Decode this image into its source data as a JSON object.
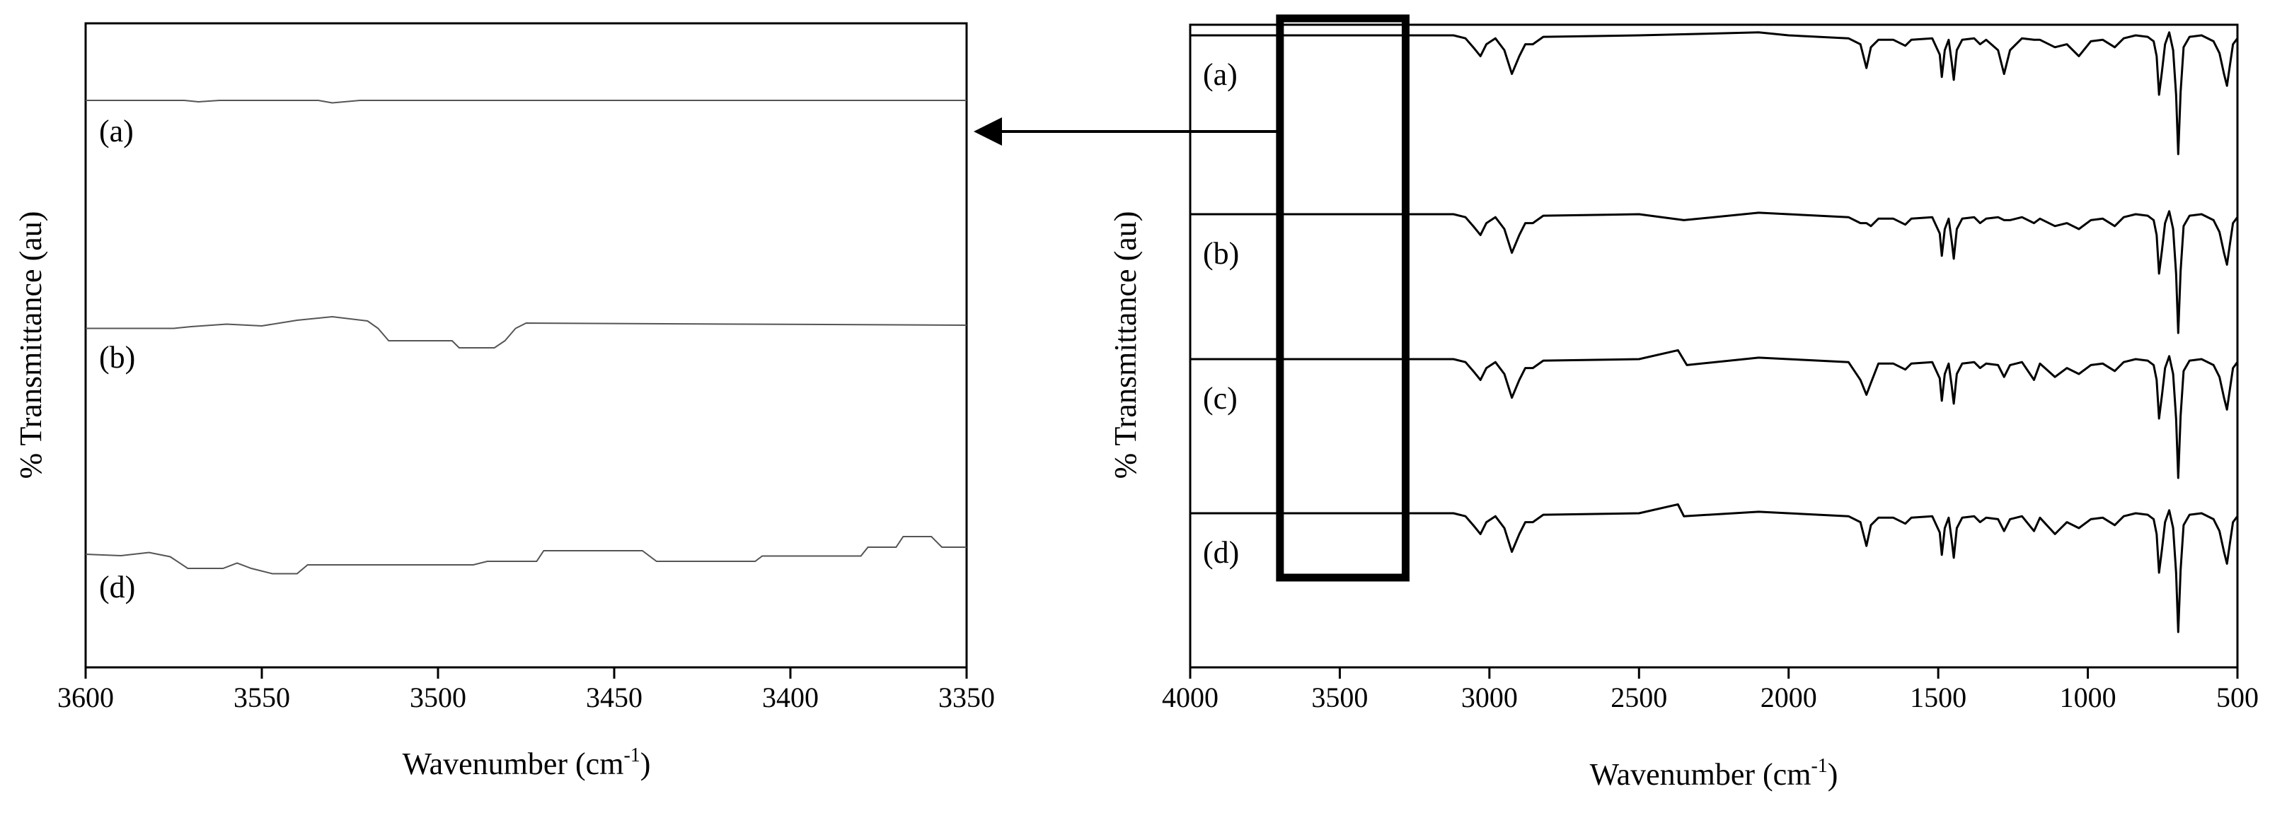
{
  "chart_data": [
    {
      "type": "line",
      "title": "",
      "xlabel": "Wavenumber (cm",
      "xlabel_sup": "-1",
      "xlabel_close": ")",
      "ylabel": "% Transmittance (au)",
      "xlim": [
        3600,
        3350
      ],
      "x_reversed": true,
      "x_ticks": [
        3600,
        3550,
        3500,
        3450,
        3400,
        3350
      ],
      "y_ticks": false,
      "grid": false,
      "legend": "none",
      "series_color": "#555555",
      "series": [
        {
          "name": "(a)",
          "points": [
            [
              3600,
              0
            ],
            [
              3572,
              0
            ],
            [
              3568,
              0.4
            ],
            [
              3562,
              0
            ],
            [
              3534,
              0
            ],
            [
              3530,
              0.7
            ],
            [
              3522,
              0
            ],
            [
              3350,
              0
            ]
          ]
        },
        {
          "name": "(b)",
          "points": [
            [
              3600,
              0.5
            ],
            [
              3575,
              0.5
            ],
            [
              3570,
              0
            ],
            [
              3560,
              -0.7
            ],
            [
              3550,
              -0.2
            ],
            [
              3540,
              -1.8
            ],
            [
              3530,
              -2.8
            ],
            [
              3520,
              -1.6
            ],
            [
              3517,
              0.5
            ],
            [
              3514,
              4
            ],
            [
              3496,
              4
            ],
            [
              3494,
              6
            ],
            [
              3484,
              6
            ],
            [
              3481,
              4
            ],
            [
              3478,
              0.5
            ],
            [
              3475,
              -1
            ],
            [
              3350,
              -0.4
            ]
          ]
        },
        {
          "name": "(d)",
          "points": [
            [
              3600,
              0
            ],
            [
              3590,
              0.4
            ],
            [
              3582,
              -0.5
            ],
            [
              3576,
              0.7
            ],
            [
              3571,
              4
            ],
            [
              3561,
              4
            ],
            [
              3557,
              2.5
            ],
            [
              3553,
              4
            ],
            [
              3547,
              5.5
            ],
            [
              3540,
              5.5
            ],
            [
              3537,
              3
            ],
            [
              3490,
              3
            ],
            [
              3486,
              2
            ],
            [
              3472,
              2
            ],
            [
              3470,
              -1
            ],
            [
              3442,
              -1
            ],
            [
              3438,
              2
            ],
            [
              3410,
              2
            ],
            [
              3408,
              0.5
            ],
            [
              3380,
              0.5
            ],
            [
              3378,
              -2
            ],
            [
              3370,
              -2
            ],
            [
              3368,
              -5
            ],
            [
              3360,
              -5
            ],
            [
              3357,
              -2
            ],
            [
              3350,
              -2
            ]
          ]
        }
      ],
      "labels": [
        "(a)",
        "(b)",
        "(d)"
      ]
    },
    {
      "type": "line",
      "title": "",
      "xlabel": "Wavenumber (cm",
      "xlabel_sup": "-1",
      "xlabel_close": ")",
      "ylabel": "% Transmittance (au)",
      "xlim": [
        4000,
        500
      ],
      "x_reversed": true,
      "x_ticks": [
        4000,
        3500,
        3000,
        2500,
        2000,
        1500,
        1000,
        500
      ],
      "y_ticks": false,
      "grid": false,
      "legend": "none",
      "series_color": "#000000",
      "zoom_box_x_range": [
        3700,
        3280
      ],
      "series_common_shape": [
        [
          4000,
          0
        ],
        [
          3120,
          0
        ],
        [
          3080,
          2
        ],
        [
          3050,
          9
        ],
        [
          3030,
          14
        ],
        [
          3010,
          6
        ],
        [
          2980,
          2
        ],
        [
          2950,
          10
        ],
        [
          2925,
          26
        ],
        [
          2900,
          14
        ],
        [
          2880,
          6
        ],
        [
          2855,
          6
        ],
        [
          2820,
          1
        ],
        [
          2500,
          0
        ],
        [
          2100,
          -1
        ],
        [
          2000,
          0
        ],
        [
          1800,
          2
        ],
        [
          1760,
          6
        ],
        [
          1740,
          22
        ],
        [
          1725,
          8
        ],
        [
          1700,
          3
        ],
        [
          1650,
          3
        ],
        [
          1610,
          7
        ],
        [
          1590,
          3
        ],
        [
          1520,
          2
        ],
        [
          1495,
          13
        ],
        [
          1488,
          28
        ],
        [
          1478,
          10
        ],
        [
          1465,
          3
        ],
        [
          1455,
          18
        ],
        [
          1448,
          30
        ],
        [
          1438,
          10
        ],
        [
          1420,
          3
        ],
        [
          1380,
          2
        ],
        [
          1360,
          6
        ],
        [
          1340,
          3
        ],
        [
          1300,
          4
        ],
        [
          1280,
          12
        ],
        [
          1260,
          4
        ],
        [
          1220,
          2
        ],
        [
          1180,
          6
        ],
        [
          1160,
          3
        ],
        [
          1110,
          8
        ],
        [
          1070,
          6
        ],
        [
          1030,
          10
        ],
        [
          990,
          4
        ],
        [
          950,
          3
        ],
        [
          910,
          8
        ],
        [
          880,
          2
        ],
        [
          840,
          0
        ],
        [
          800,
          1
        ],
        [
          780,
          4
        ],
        [
          770,
          14
        ],
        [
          762,
          40
        ],
        [
          752,
          24
        ],
        [
          742,
          6
        ],
        [
          728,
          -2
        ],
        [
          715,
          10
        ],
        [
          705,
          40
        ],
        [
          698,
          80
        ],
        [
          690,
          38
        ],
        [
          680,
          8
        ],
        [
          660,
          1
        ],
        [
          620,
          0
        ],
        [
          580,
          4
        ],
        [
          560,
          12
        ],
        [
          545,
          26
        ],
        [
          535,
          34
        ],
        [
          525,
          20
        ],
        [
          515,
          6
        ],
        [
          500,
          2
        ]
      ],
      "series": [
        {
          "name": "(a)",
          "baseline_offset": 0,
          "overrides": [
            [
              2100,
              -2
            ],
            [
              1300,
              10
            ],
            [
              1280,
              26
            ],
            [
              1260,
              10
            ],
            [
              1180,
              3
            ],
            [
              1030,
              14
            ]
          ]
        },
        {
          "name": "(b)",
          "baseline_offset": 0,
          "overrides": [
            [
              2350,
              4
            ],
            [
              1740,
              6
            ],
            [
              1300,
              2
            ],
            [
              1280,
              4
            ]
          ]
        },
        {
          "name": "(c)",
          "baseline_offset": 0,
          "overrides": [
            [
              2370,
              -6
            ],
            [
              2340,
              4
            ],
            [
              1760,
              14
            ],
            [
              1740,
              24
            ],
            [
              1725,
              16
            ],
            [
              1180,
              14
            ],
            [
              1110,
              12
            ]
          ]
        },
        {
          "name": "(d)",
          "baseline_offset": 0,
          "overrides": [
            [
              2370,
              -6
            ],
            [
              2350,
              2
            ],
            [
              1180,
              12
            ],
            [
              1110,
              14
            ],
            [
              1090,
              10
            ]
          ]
        }
      ],
      "labels": [
        "(a)",
        "(b)",
        "(c)",
        "(d)"
      ]
    }
  ]
}
